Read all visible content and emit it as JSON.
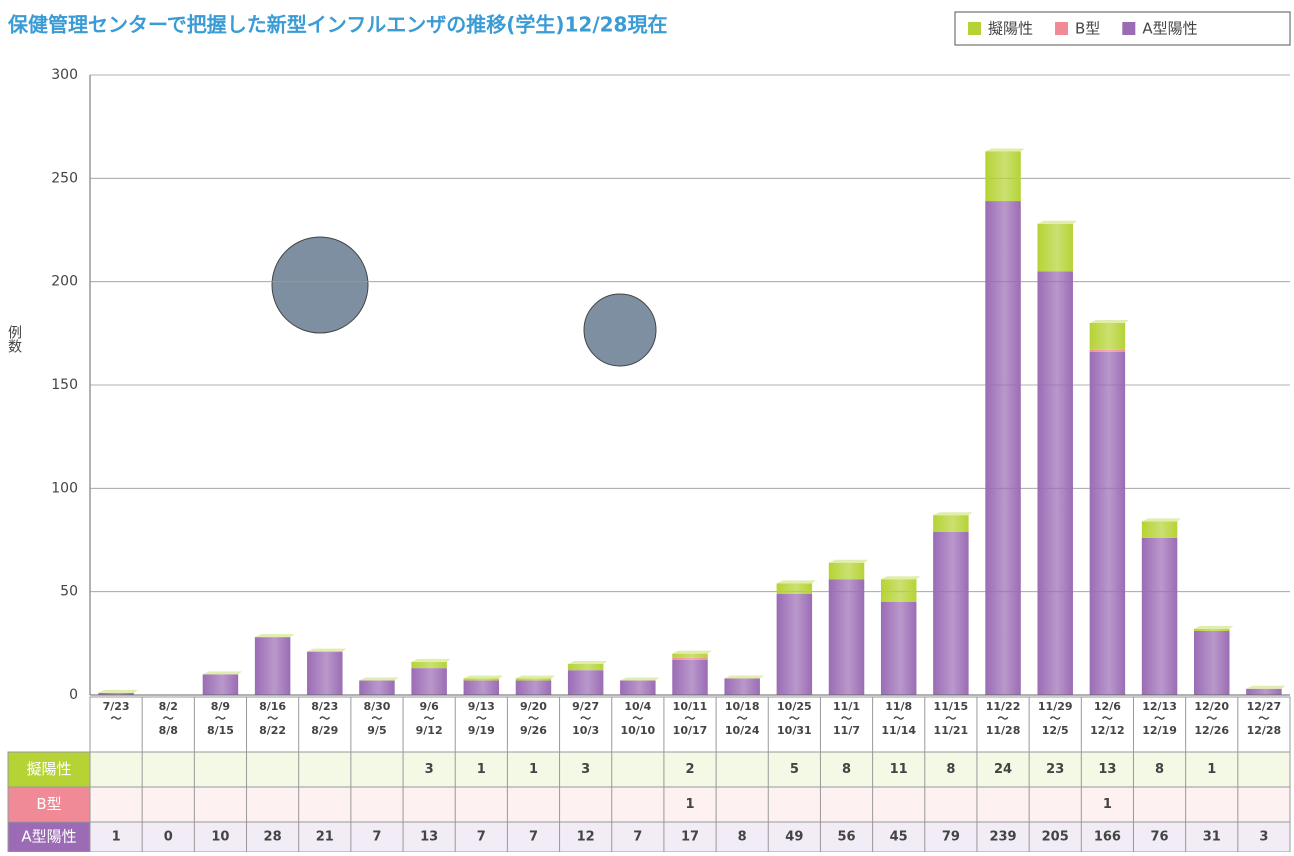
{
  "chart_data": {
    "type": "stacked_bar",
    "title": "保健管理センターで把握した新型インフルエンザの推移(学生)12/28現在",
    "y_label": "例数",
    "categories": [
      [
        "7/23",
        "〜"
      ],
      [
        "8/2",
        "〜",
        "8/8"
      ],
      [
        "8/9",
        "〜",
        "8/15"
      ],
      [
        "8/16",
        "〜",
        "8/22"
      ],
      [
        "8/23",
        "〜",
        "8/29"
      ],
      [
        "8/30",
        "〜",
        "9/5"
      ],
      [
        "9/6",
        "〜",
        "9/12"
      ],
      [
        "9/13",
        "〜",
        "9/19"
      ],
      [
        "9/20",
        "〜",
        "9/26"
      ],
      [
        "9/27",
        "〜",
        "10/3"
      ],
      [
        "10/4",
        "〜",
        "10/10"
      ],
      [
        "10/11",
        "〜",
        "10/17"
      ],
      [
        "10/18",
        "〜",
        "10/24"
      ],
      [
        "10/25",
        "〜",
        "10/31"
      ],
      [
        "11/1",
        "〜",
        "11/7"
      ],
      [
        "11/8",
        "〜",
        "11/14"
      ],
      [
        "11/15",
        "〜",
        "11/21"
      ],
      [
        "11/22",
        "〜",
        "11/28"
      ],
      [
        "11/29",
        "〜",
        "12/5"
      ],
      [
        "12/6",
        "〜",
        "12/12"
      ],
      [
        "12/13",
        "〜",
        "12/19"
      ],
      [
        "12/20",
        "〜",
        "12/26"
      ],
      [
        "12/27",
        "〜",
        "12/28"
      ]
    ],
    "series": [
      {
        "name": "擬陽性",
        "color": "#b5d334",
        "row_color": "#f4f9e6",
        "values": [
          null,
          null,
          null,
          null,
          null,
          null,
          3,
          1,
          1,
          3,
          null,
          2,
          null,
          5,
          8,
          11,
          8,
          24,
          23,
          13,
          8,
          1,
          null
        ]
      },
      {
        "name": "B型",
        "color": "#f08a96",
        "row_color": "#fdf1f1",
        "values": [
          null,
          null,
          null,
          null,
          null,
          null,
          null,
          null,
          null,
          null,
          null,
          1,
          null,
          null,
          null,
          null,
          null,
          null,
          null,
          1,
          null,
          null,
          null
        ]
      },
      {
        "name": "A型陽性",
        "color": "#9b6cb5",
        "row_color": "#f1ecf6",
        "values": [
          1,
          0,
          10,
          28,
          21,
          7,
          13,
          7,
          7,
          12,
          7,
          17,
          8,
          49,
          56,
          45,
          79,
          239,
          205,
          166,
          76,
          31,
          3
        ]
      }
    ],
    "ylim": [
      0,
      300
    ],
    "yticks": [
      0,
      50,
      100,
      150,
      200,
      250,
      300
    ],
    "grid": true
  }
}
